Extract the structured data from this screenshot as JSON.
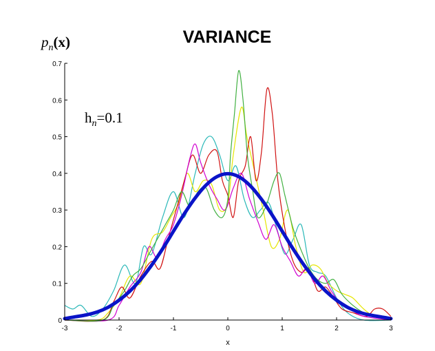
{
  "chart_data": {
    "type": "line",
    "title": "VARIANCE",
    "ylabel_main": "p",
    "ylabel_sub": "n",
    "ylabel_arg": "(x)",
    "xlabel": "x",
    "annotation_main": "h",
    "annotation_sub": "n",
    "annotation_value": "=0.1",
    "xlim": [
      -3,
      3
    ],
    "ylim": [
      0,
      0.7
    ],
    "xticks": [
      -3,
      -2,
      -1,
      0,
      1,
      2,
      3
    ],
    "xtick_labels": [
      "-3",
      "-2",
      "-1",
      "0",
      "1",
      "2",
      "3"
    ],
    "yticks": [
      0,
      0.1,
      0.2,
      0.3,
      0.4,
      0.5,
      0.6,
      0.7
    ],
    "ytick_labels": [
      "0",
      "0.1",
      "0.2",
      "0.3",
      "0.4",
      "0.5",
      "0.6",
      "0.7"
    ],
    "grid": false,
    "colors": {
      "true_density": "#0a14c8",
      "estimates": [
        "#2ab8b8",
        "#e6e600",
        "#d01010",
        "#d000d0",
        "#40b040"
      ]
    },
    "series": [
      {
        "values": [
          [
            -3.0,
            0.004
          ],
          [
            -2.8,
            0.009
          ],
          [
            -2.6,
            0.014
          ],
          [
            -2.4,
            0.022
          ],
          [
            -2.2,
            0.035
          ],
          [
            -2.0,
            0.054
          ],
          [
            -1.8,
            0.079
          ],
          [
            -1.6,
            0.111
          ],
          [
            -1.4,
            0.15
          ],
          [
            -1.2,
            0.194
          ],
          [
            -1.0,
            0.242
          ],
          [
            -0.8,
            0.29
          ],
          [
            -0.6,
            0.333
          ],
          [
            -0.4,
            0.368
          ],
          [
            -0.2,
            0.391
          ],
          [
            0.0,
            0.399
          ],
          [
            0.2,
            0.391
          ],
          [
            0.4,
            0.368
          ],
          [
            0.6,
            0.333
          ],
          [
            0.8,
            0.29
          ],
          [
            1.0,
            0.242
          ],
          [
            1.2,
            0.194
          ],
          [
            1.4,
            0.15
          ],
          [
            1.6,
            0.111
          ],
          [
            1.8,
            0.079
          ],
          [
            2.0,
            0.054
          ],
          [
            2.2,
            0.035
          ],
          [
            2.4,
            0.022
          ],
          [
            2.6,
            0.014
          ],
          [
            2.8,
            0.009
          ],
          [
            3.0,
            0.004
          ]
        ]
      },
      {
        "values": [
          [
            -3.0,
            0.04
          ],
          [
            -2.85,
            0.03
          ],
          [
            -2.7,
            0.04
          ],
          [
            -2.5,
            0.01
          ],
          [
            -2.3,
            0.03
          ],
          [
            -2.1,
            0.08
          ],
          [
            -1.9,
            0.15
          ],
          [
            -1.7,
            0.1
          ],
          [
            -1.55,
            0.2
          ],
          [
            -1.4,
            0.18
          ],
          [
            -1.2,
            0.28
          ],
          [
            -1.0,
            0.35
          ],
          [
            -0.8,
            0.28
          ],
          [
            -0.6,
            0.4
          ],
          [
            -0.45,
            0.48
          ],
          [
            -0.3,
            0.5
          ],
          [
            -0.15,
            0.45
          ],
          [
            0.0,
            0.38
          ],
          [
            0.15,
            0.42
          ],
          [
            0.3,
            0.33
          ],
          [
            0.45,
            0.28
          ],
          [
            0.6,
            0.3
          ],
          [
            0.75,
            0.32
          ],
          [
            0.9,
            0.25
          ],
          [
            1.05,
            0.18
          ],
          [
            1.2,
            0.22
          ],
          [
            1.35,
            0.26
          ],
          [
            1.5,
            0.15
          ],
          [
            1.65,
            0.13
          ],
          [
            1.8,
            0.12
          ],
          [
            2.0,
            0.06
          ],
          [
            2.2,
            0.02
          ],
          [
            2.5,
            0.0
          ],
          [
            3.0,
            0.0
          ]
        ]
      },
      {
        "values": [
          [
            -3.0,
            0.0
          ],
          [
            -2.4,
            0.0
          ],
          [
            -2.2,
            0.02
          ],
          [
            -2.0,
            0.06
          ],
          [
            -1.8,
            0.12
          ],
          [
            -1.6,
            0.1
          ],
          [
            -1.4,
            0.22
          ],
          [
            -1.2,
            0.24
          ],
          [
            -1.05,
            0.28
          ],
          [
            -0.9,
            0.32
          ],
          [
            -0.75,
            0.4
          ],
          [
            -0.6,
            0.35
          ],
          [
            -0.45,
            0.38
          ],
          [
            -0.3,
            0.37
          ],
          [
            -0.15,
            0.3
          ],
          [
            0.0,
            0.32
          ],
          [
            0.1,
            0.45
          ],
          [
            0.25,
            0.58
          ],
          [
            0.35,
            0.5
          ],
          [
            0.5,
            0.4
          ],
          [
            0.65,
            0.3
          ],
          [
            0.8,
            0.2
          ],
          [
            0.95,
            0.22
          ],
          [
            1.1,
            0.3
          ],
          [
            1.25,
            0.2
          ],
          [
            1.4,
            0.13
          ],
          [
            1.55,
            0.15
          ],
          [
            1.7,
            0.14
          ],
          [
            1.85,
            0.1
          ],
          [
            2.0,
            0.08
          ],
          [
            2.15,
            0.07
          ],
          [
            2.3,
            0.06
          ],
          [
            2.5,
            0.03
          ],
          [
            2.7,
            0.01
          ],
          [
            3.0,
            0.0
          ]
        ]
      },
      {
        "values": [
          [
            -3.0,
            0.0
          ],
          [
            -2.3,
            0.0
          ],
          [
            -2.1,
            0.05
          ],
          [
            -1.95,
            0.09
          ],
          [
            -1.8,
            0.06
          ],
          [
            -1.6,
            0.12
          ],
          [
            -1.4,
            0.16
          ],
          [
            -1.25,
            0.14
          ],
          [
            -1.1,
            0.22
          ],
          [
            -0.95,
            0.3
          ],
          [
            -0.8,
            0.38
          ],
          [
            -0.65,
            0.45
          ],
          [
            -0.5,
            0.4
          ],
          [
            -0.35,
            0.45
          ],
          [
            -0.2,
            0.46
          ],
          [
            -0.1,
            0.38
          ],
          [
            0.0,
            0.34
          ],
          [
            0.1,
            0.28
          ],
          [
            0.2,
            0.38
          ],
          [
            0.32,
            0.42
          ],
          [
            0.42,
            0.5
          ],
          [
            0.52,
            0.38
          ],
          [
            0.62,
            0.46
          ],
          [
            0.72,
            0.63
          ],
          [
            0.82,
            0.56
          ],
          [
            0.92,
            0.38
          ],
          [
            1.05,
            0.25
          ],
          [
            1.2,
            0.16
          ],
          [
            1.35,
            0.13
          ],
          [
            1.5,
            0.14
          ],
          [
            1.65,
            0.08
          ],
          [
            1.8,
            0.09
          ],
          [
            1.95,
            0.06
          ],
          [
            2.1,
            0.03
          ],
          [
            2.3,
            0.02
          ],
          [
            2.55,
            0.01
          ],
          [
            2.7,
            0.03
          ],
          [
            2.85,
            0.03
          ],
          [
            3.0,
            0.01
          ]
        ]
      },
      {
        "values": [
          [
            -3.0,
            0.0
          ],
          [
            -2.2,
            0.0
          ],
          [
            -2.0,
            0.04
          ],
          [
            -1.8,
            0.09
          ],
          [
            -1.6,
            0.13
          ],
          [
            -1.45,
            0.2
          ],
          [
            -1.3,
            0.17
          ],
          [
            -1.15,
            0.22
          ],
          [
            -1.0,
            0.26
          ],
          [
            -0.85,
            0.34
          ],
          [
            -0.7,
            0.44
          ],
          [
            -0.6,
            0.48
          ],
          [
            -0.5,
            0.43
          ],
          [
            -0.35,
            0.37
          ],
          [
            -0.2,
            0.33
          ],
          [
            -0.05,
            0.3
          ],
          [
            0.1,
            0.36
          ],
          [
            0.25,
            0.4
          ],
          [
            0.4,
            0.33
          ],
          [
            0.55,
            0.27
          ],
          [
            0.7,
            0.22
          ],
          [
            0.85,
            0.26
          ],
          [
            1.0,
            0.2
          ],
          [
            1.15,
            0.16
          ],
          [
            1.3,
            0.12
          ],
          [
            1.45,
            0.14
          ],
          [
            1.6,
            0.1
          ],
          [
            1.75,
            0.12
          ],
          [
            1.9,
            0.08
          ],
          [
            2.05,
            0.05
          ],
          [
            2.25,
            0.03
          ],
          [
            2.5,
            0.01
          ],
          [
            3.0,
            0.0
          ]
        ]
      },
      {
        "values": [
          [
            -3.0,
            0.0
          ],
          [
            -2.3,
            0.0
          ],
          [
            -2.1,
            0.04
          ],
          [
            -1.9,
            0.08
          ],
          [
            -1.75,
            0.12
          ],
          [
            -1.6,
            0.14
          ],
          [
            -1.45,
            0.18
          ],
          [
            -1.3,
            0.22
          ],
          [
            -1.15,
            0.26
          ],
          [
            -1.0,
            0.3
          ],
          [
            -0.85,
            0.35
          ],
          [
            -0.7,
            0.31
          ],
          [
            -0.55,
            0.35
          ],
          [
            -0.4,
            0.36
          ],
          [
            -0.25,
            0.3
          ],
          [
            -0.1,
            0.28
          ],
          [
            0.0,
            0.33
          ],
          [
            0.05,
            0.45
          ],
          [
            0.12,
            0.56
          ],
          [
            0.2,
            0.68
          ],
          [
            0.28,
            0.6
          ],
          [
            0.36,
            0.45
          ],
          [
            0.45,
            0.36
          ],
          [
            0.55,
            0.28
          ],
          [
            0.7,
            0.31
          ],
          [
            0.85,
            0.38
          ],
          [
            0.95,
            0.4
          ],
          [
            1.05,
            0.34
          ],
          [
            1.2,
            0.25
          ],
          [
            1.35,
            0.19
          ],
          [
            1.5,
            0.14
          ],
          [
            1.65,
            0.11
          ],
          [
            1.8,
            0.1
          ],
          [
            1.95,
            0.11
          ],
          [
            2.1,
            0.07
          ],
          [
            2.3,
            0.04
          ],
          [
            2.5,
            0.02
          ],
          [
            2.7,
            0.01
          ],
          [
            3.0,
            0.0
          ]
        ]
      }
    ]
  }
}
